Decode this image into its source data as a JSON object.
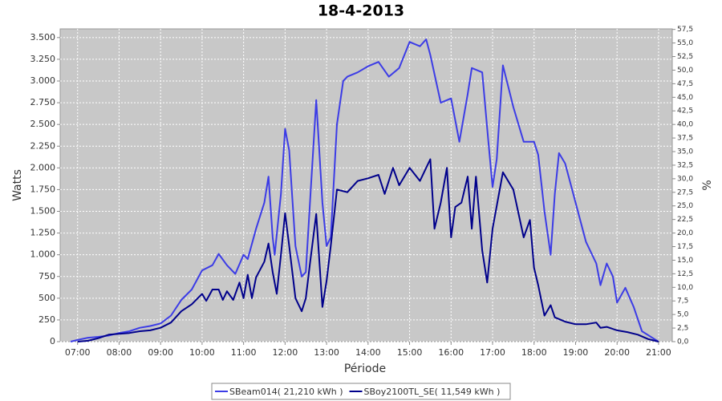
{
  "chart_data": {
    "type": "line",
    "title": "18-4-2013",
    "x_label": "Période",
    "y_label": "Watts",
    "y2_label": "%",
    "xlim": [
      6.58,
      21.33
    ],
    "xticks": [
      {
        "value": 7,
        "label": "07:00"
      },
      {
        "value": 8,
        "label": "08:00"
      },
      {
        "value": 9,
        "label": "09:00"
      },
      {
        "value": 10,
        "label": "10:00"
      },
      {
        "value": 11,
        "label": "11:00"
      },
      {
        "value": 12,
        "label": "12:00"
      },
      {
        "value": 13,
        "label": "13:00"
      },
      {
        "value": 14,
        "label": "14:00"
      },
      {
        "value": 15,
        "label": "15:00"
      },
      {
        "value": 16,
        "label": "16:00"
      },
      {
        "value": 17,
        "label": "17:00"
      },
      {
        "value": 18,
        "label": "18:00"
      },
      {
        "value": 19,
        "label": "19:00"
      },
      {
        "value": 20,
        "label": "20:00"
      },
      {
        "value": 21,
        "label": "21:00"
      }
    ],
    "ylim": [
      0,
      3600
    ],
    "yticks": [
      0,
      250,
      500,
      750,
      {
        "value": 1000,
        "label": "1.000"
      },
      {
        "value": 1250,
        "label": "1.250"
      },
      {
        "value": 1500,
        "label": "1.500"
      },
      {
        "value": 1750,
        "label": "1.750"
      },
      {
        "value": 2000,
        "label": "2.000"
      },
      {
        "value": 2250,
        "label": "2.250"
      },
      {
        "value": 2500,
        "label": "2.500"
      },
      {
        "value": 2750,
        "label": "2.750"
      },
      {
        "value": 3000,
        "label": "3.000"
      },
      {
        "value": 3250,
        "label": "3.250"
      },
      {
        "value": 3500,
        "label": "3.500"
      }
    ],
    "y2lim": [
      0,
      57.6
    ],
    "y2ticks": [
      {
        "value": 0,
        "label": "0,0"
      },
      {
        "value": 2.5,
        "label": "2,5"
      },
      {
        "value": 5,
        "label": "5,0"
      },
      {
        "value": 7.5,
        "label": "7,5"
      },
      {
        "value": 10,
        "label": "10,0"
      },
      {
        "value": 12.5,
        "label": "12,5"
      },
      {
        "value": 15,
        "label": "15,0"
      },
      {
        "value": 17.5,
        "label": "17,5"
      },
      {
        "value": 20,
        "label": "20,0"
      },
      {
        "value": 22.5,
        "label": "22,5"
      },
      {
        "value": 25,
        "label": "25,0"
      },
      {
        "value": 27.5,
        "label": "27,5"
      },
      {
        "value": 30,
        "label": "30,0"
      },
      {
        "value": 32.5,
        "label": "32,5"
      },
      {
        "value": 35,
        "label": "35,0"
      },
      {
        "value": 37.5,
        "label": "37,5"
      },
      {
        "value": 40,
        "label": "40,0"
      },
      {
        "value": 42.5,
        "label": "42,5"
      },
      {
        "value": 45,
        "label": "45,0"
      },
      {
        "value": 47.5,
        "label": "47,5"
      },
      {
        "value": 50,
        "label": "50,0"
      },
      {
        "value": 52.5,
        "label": "52,5"
      },
      {
        "value": 55,
        "label": "55,0"
      },
      {
        "value": 57.5,
        "label": "57,5"
      }
    ],
    "grid": true,
    "series": [
      {
        "name": "SBeam014( 21,210 kWh )",
        "color": "#3c3ce6",
        "x": [
          6.83,
          7.0,
          7.25,
          7.5,
          7.75,
          8.0,
          8.25,
          8.5,
          8.75,
          9.0,
          9.25,
          9.5,
          9.75,
          10.0,
          10.25,
          10.4,
          10.6,
          10.8,
          11.0,
          11.1,
          11.3,
          11.5,
          11.6,
          11.7,
          11.75,
          11.9,
          12.0,
          12.1,
          12.25,
          12.4,
          12.5,
          12.6,
          12.75,
          12.9,
          13.0,
          13.1,
          13.25,
          13.4,
          13.5,
          13.75,
          14.0,
          14.25,
          14.5,
          14.75,
          15.0,
          15.25,
          15.4,
          15.5,
          15.75,
          16.0,
          16.2,
          16.4,
          16.5,
          16.75,
          16.9,
          17.0,
          17.1,
          17.25,
          17.5,
          17.75,
          18.0,
          18.1,
          18.25,
          18.4,
          18.5,
          18.6,
          18.75,
          19.0,
          19.25,
          19.5,
          19.6,
          19.75,
          19.9,
          20.0,
          20.2,
          20.4,
          20.6,
          20.9,
          21.0
        ],
        "values": [
          0,
          20,
          45,
          55,
          70,
          100,
          120,
          160,
          180,
          210,
          300,
          480,
          600,
          820,
          880,
          1010,
          880,
          780,
          1000,
          950,
          1300,
          1600,
          1900,
          1200,
          1000,
          1700,
          2450,
          2200,
          1100,
          750,
          800,
          1600,
          2780,
          1600,
          1100,
          1200,
          2500,
          3000,
          3050,
          3100,
          3170,
          3220,
          3050,
          3150,
          3450,
          3400,
          3480,
          3300,
          2750,
          2800,
          2300,
          2850,
          3150,
          3100,
          2300,
          1780,
          2100,
          3180,
          2700,
          2300,
          2300,
          2150,
          1500,
          1000,
          1700,
          2170,
          2050,
          1600,
          1150,
          900,
          650,
          900,
          750,
          450,
          620,
          400,
          120,
          30,
          0
        ]
      },
      {
        "name": "SBoy2100TL_SE( 11,549 kWh )",
        "color": "#00008b",
        "x": [
          7.0,
          7.25,
          7.5,
          7.75,
          8.0,
          8.25,
          8.5,
          8.75,
          9.0,
          9.25,
          9.5,
          9.75,
          10.0,
          10.1,
          10.25,
          10.4,
          10.5,
          10.6,
          10.75,
          10.9,
          11.0,
          11.1,
          11.2,
          11.3,
          11.5,
          11.6,
          11.7,
          11.8,
          11.9,
          12.0,
          12.1,
          12.25,
          12.4,
          12.5,
          12.6,
          12.75,
          12.9,
          13.0,
          13.1,
          13.25,
          13.5,
          13.75,
          14.0,
          14.25,
          14.4,
          14.6,
          14.75,
          15.0,
          15.25,
          15.5,
          15.6,
          15.75,
          15.9,
          16.0,
          16.1,
          16.25,
          16.4,
          16.5,
          16.6,
          16.75,
          16.87,
          17.0,
          17.25,
          17.5,
          17.75,
          17.9,
          18.0,
          18.1,
          18.25,
          18.4,
          18.5,
          18.75,
          19.0,
          19.25,
          19.5,
          19.6,
          19.75,
          20.0,
          20.25,
          20.5,
          20.75,
          21.0
        ],
        "values": [
          0,
          10,
          40,
          80,
          90,
          100,
          120,
          130,
          160,
          220,
          350,
          430,
          550,
          470,
          600,
          600,
          480,
          580,
          480,
          680,
          500,
          770,
          500,
          740,
          920,
          1130,
          800,
          550,
          1000,
          1480,
          1100,
          500,
          350,
          500,
          900,
          1470,
          400,
          700,
          1100,
          1750,
          1720,
          1850,
          1880,
          1920,
          1700,
          2000,
          1800,
          2000,
          1850,
          2100,
          1300,
          1600,
          2000,
          1200,
          1550,
          1600,
          1900,
          1300,
          1900,
          1050,
          680,
          1300,
          1950,
          1750,
          1200,
          1400,
          850,
          650,
          300,
          420,
          280,
          230,
          200,
          200,
          220,
          160,
          170,
          130,
          110,
          80,
          30,
          0
        ]
      }
    ]
  }
}
